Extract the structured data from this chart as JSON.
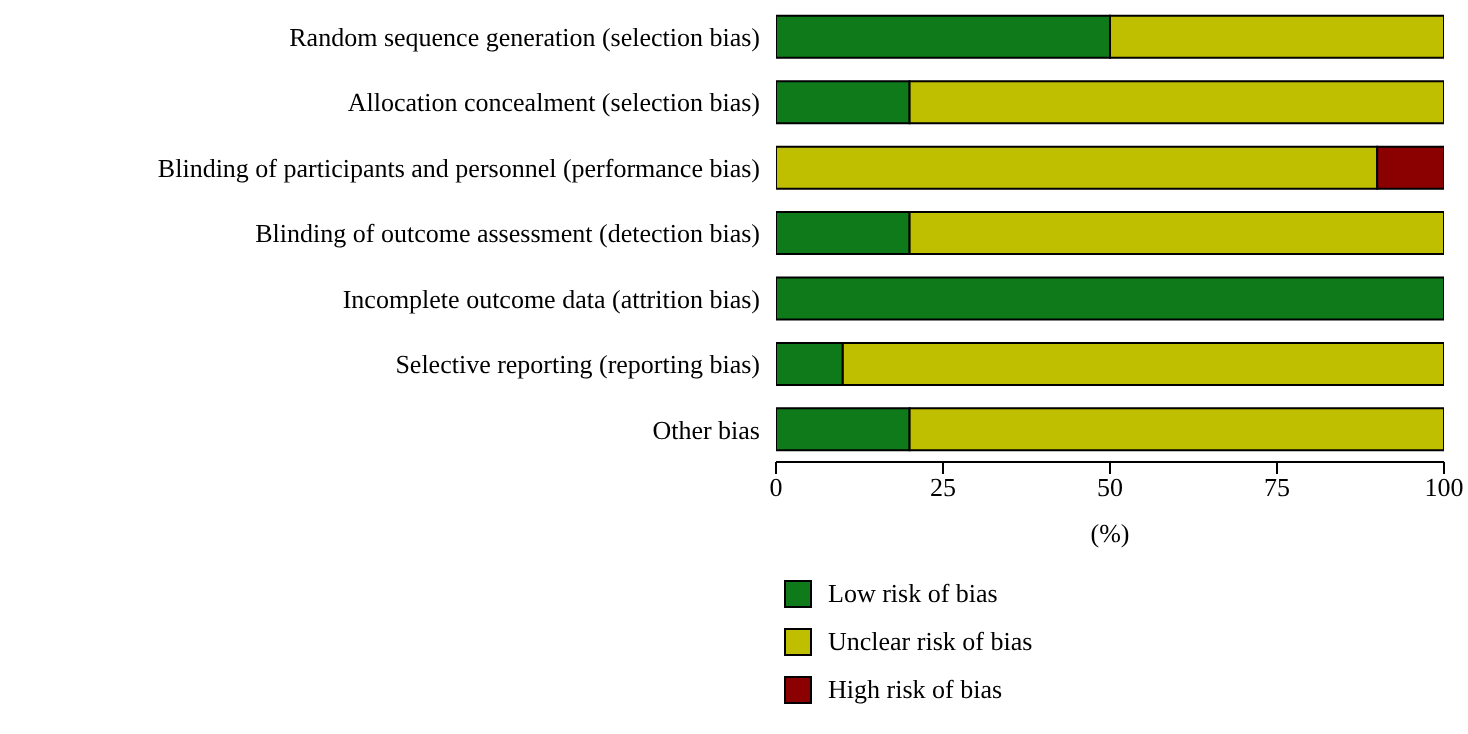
{
  "chart_data": {
    "type": "bar",
    "orientation": "horizontal",
    "stacked": true,
    "xlabel": "(%)",
    "categories": [
      "Random sequence generation (selection bias)",
      "Allocation concealment (selection bias)",
      "Blinding of participants and personnel (performance bias)",
      "Blinding of outcome assessment (detection bias)",
      "Incomplete outcome data (attrition bias)",
      "Selective reporting (reporting bias)",
      "Other bias"
    ],
    "series": [
      {
        "name": "Low risk of bias",
        "color": "#0f7a1a",
        "values": [
          50,
          20,
          0,
          20,
          100,
          10,
          20
        ]
      },
      {
        "name": "Unclear risk of bias",
        "color": "#bfbf00",
        "values": [
          50,
          80,
          90,
          80,
          0,
          90,
          80
        ]
      },
      {
        "name": "High risk of bias",
        "color": "#8b0000",
        "values": [
          0,
          0,
          10,
          0,
          0,
          0,
          0
        ]
      }
    ],
    "xlim": [
      0,
      100
    ],
    "xticks": [
      0,
      25,
      50,
      75,
      100
    ],
    "grid": false,
    "legend": "bottom"
  }
}
